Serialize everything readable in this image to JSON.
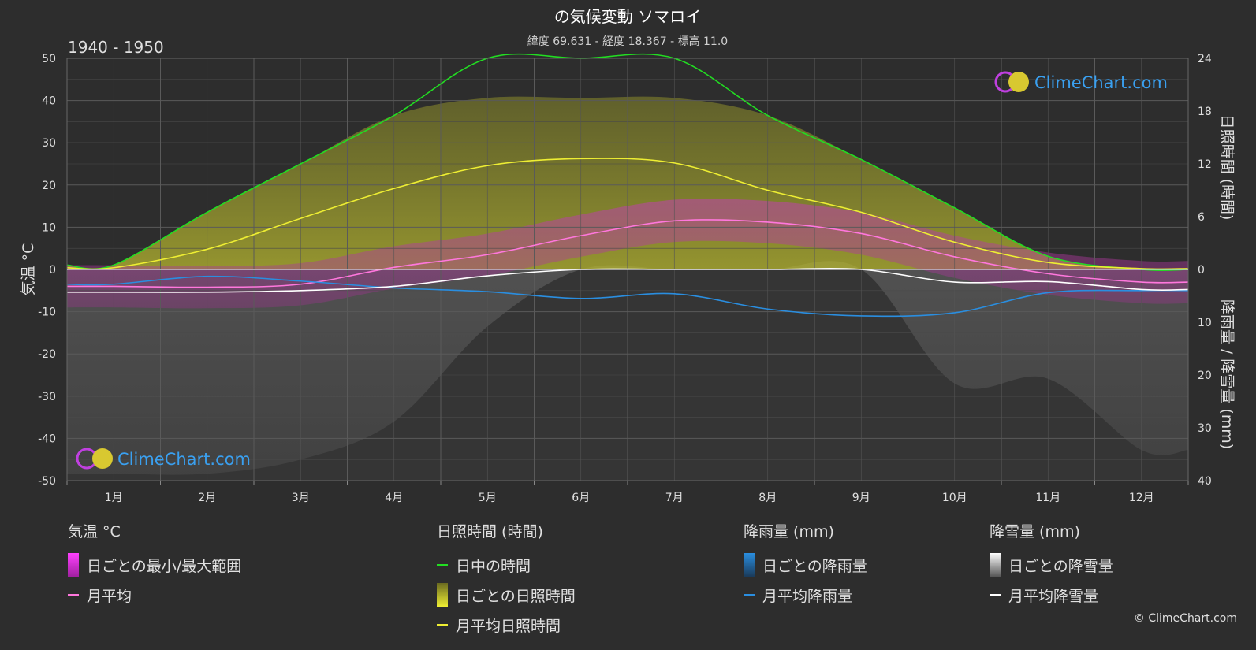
{
  "title": "の気候変動 ソマロイ",
  "subtitle": "緯度 69.631 - 経度 18.367 - 標高 11.0",
  "period": "1940 - 1950",
  "logo_text": "ClimeChart.com",
  "copyright": "© ClimeChart.com",
  "colors": {
    "background": "#2d2d2d",
    "daylight": "#22dd22",
    "sunshine_avg": "#eeee33",
    "temp_avg": "#ff77dd",
    "rain_avg": "#2a8ee0",
    "snow_avg": "#ffffff",
    "logo": "#3aa0f0"
  },
  "chart_data": {
    "type": "line",
    "x": [
      "1月",
      "2月",
      "3月",
      "4月",
      "5月",
      "6月",
      "7月",
      "8月",
      "9月",
      "10月",
      "11月",
      "12月"
    ],
    "y_left": {
      "label": "気温 °C",
      "range": [
        -50,
        50
      ],
      "ticks": [
        50,
        40,
        30,
        20,
        10,
        0,
        -10,
        -20,
        -30,
        -40,
        -50
      ]
    },
    "y_right_top": {
      "label": "日照時間 (時間)",
      "range": [
        0,
        24
      ],
      "ticks": [
        24,
        18,
        12,
        6,
        0
      ]
    },
    "y_right_bottom": {
      "label": "降雨量 / 降雪量 (mm)",
      "range": [
        0,
        40
      ],
      "ticks": [
        10,
        20,
        30,
        40
      ]
    },
    "grid": true,
    "series": [
      {
        "name": "日中の時間",
        "axis": "sunshine",
        "values": [
          0.5,
          6.5,
          12.0,
          17.5,
          24,
          24,
          24,
          17.5,
          12.5,
          7.0,
          1.5,
          0
        ]
      },
      {
        "name": "月平均日照時間",
        "axis": "sunshine",
        "values": [
          0.2,
          2.3,
          5.8,
          9.2,
          11.8,
          12.6,
          12.1,
          9.0,
          6.5,
          3.1,
          0.8,
          0.1
        ]
      },
      {
        "name": "月平均",
        "axis": "temp",
        "values": [
          -4.0,
          -4.2,
          -3.5,
          0.5,
          3.5,
          8.0,
          11.5,
          11.2,
          8.5,
          3.0,
          -1.0,
          -3.0
        ]
      },
      {
        "name": "月平均降雨量",
        "axis": "precip",
        "values": [
          2.8,
          1.3,
          2.2,
          3.5,
          4.2,
          5.5,
          4.6,
          7.5,
          8.8,
          8.2,
          4.4,
          4.0
        ]
      },
      {
        "name": "月平均降雪量",
        "axis": "precip",
        "values": [
          4.3,
          4.3,
          4.0,
          3.2,
          1.2,
          0,
          0,
          0,
          0,
          2.4,
          2.3,
          3.8
        ]
      }
    ],
    "legend": {
      "groups": [
        {
          "title": "気温 °C",
          "items": [
            {
              "label": "日ごとの最小/最大範囲",
              "swatch": "grad-magenta"
            },
            {
              "label": "月平均",
              "swatch": "line-pink"
            }
          ]
        },
        {
          "title": "日照時間 (時間)",
          "items": [
            {
              "label": "日中の時間",
              "swatch": "line-green"
            },
            {
              "label": "日ごとの日照時間",
              "swatch": "grad-yellow"
            },
            {
              "label": "月平均日照時間",
              "swatch": "line-yellow"
            }
          ]
        },
        {
          "title": "降雨量 (mm)",
          "items": [
            {
              "label": "日ごとの降雨量",
              "swatch": "grad-blue"
            },
            {
              "label": "月平均降雨量",
              "swatch": "line-blue"
            }
          ]
        },
        {
          "title": "降雪量 (mm)",
          "items": [
            {
              "label": "日ごとの降雪量",
              "swatch": "grad-white"
            },
            {
              "label": "月平均降雪量",
              "swatch": "line-white"
            }
          ]
        }
      ]
    }
  }
}
